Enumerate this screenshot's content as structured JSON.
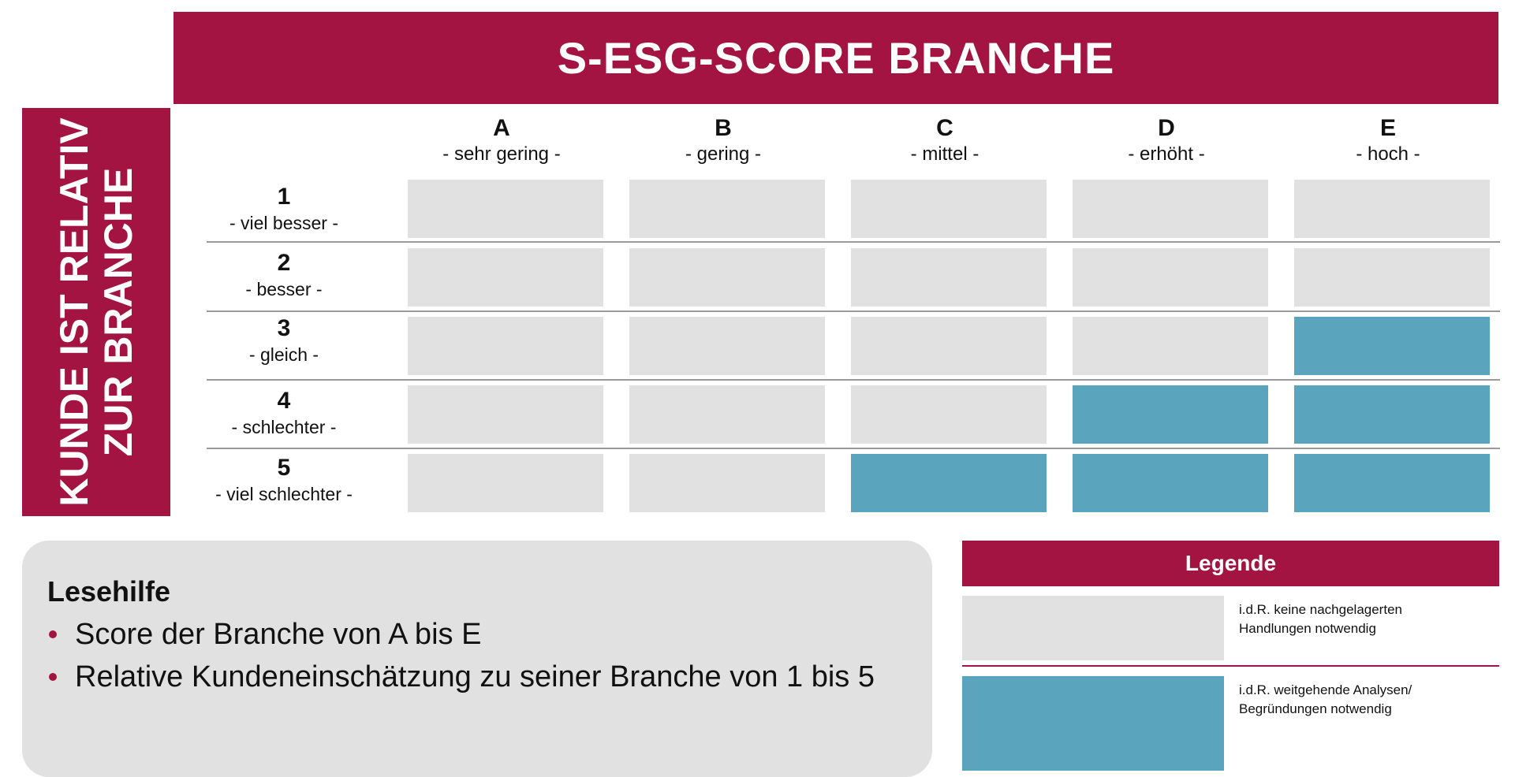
{
  "title": "S-ESG-SCORE BRANCHE",
  "side_label": {
    "line1": "KUNDE IST RELATIV",
    "line2": "ZUR BRANCHE"
  },
  "columns": [
    {
      "letter": "A",
      "label": "- sehr gering -"
    },
    {
      "letter": "B",
      "label": "- gering -"
    },
    {
      "letter": "C",
      "label": "- mittel -"
    },
    {
      "letter": "D",
      "label": "- erhöht -"
    },
    {
      "letter": "E",
      "label": "- hoch -"
    }
  ],
  "rows": [
    {
      "number": "1",
      "label": "- viel besser -"
    },
    {
      "number": "2",
      "label": "- besser -"
    },
    {
      "number": "3",
      "label": "- gleich -"
    },
    {
      "number": "4",
      "label": "- schlechter -"
    },
    {
      "number": "5",
      "label": "- viel schlechter -"
    }
  ],
  "matrix": [
    [
      0,
      0,
      0,
      0,
      0
    ],
    [
      0,
      0,
      0,
      0,
      0
    ],
    [
      0,
      0,
      0,
      0,
      1
    ],
    [
      0,
      0,
      0,
      1,
      1
    ],
    [
      0,
      0,
      1,
      1,
      1
    ]
  ],
  "help": {
    "title": "Lesehilfe",
    "items": [
      "Score der Branche von A bis E",
      "Relative Kundeneinschätzung zu seiner Branche von 1 bis 5"
    ]
  },
  "legend": {
    "title": "Legende",
    "items": [
      {
        "level": 0,
        "text_line1": "i.d.R. keine nachgelagerten",
        "text_line2": "Handlungen notwendig"
      },
      {
        "level": 1,
        "text_line1": "i.d.R. weitgehende Analysen/",
        "text_line2": "Begründungen notwendig"
      }
    ]
  },
  "colors": {
    "brand": "#a31442",
    "highlight": "#5aa5bd",
    "neutral": "#e1e1e1"
  }
}
